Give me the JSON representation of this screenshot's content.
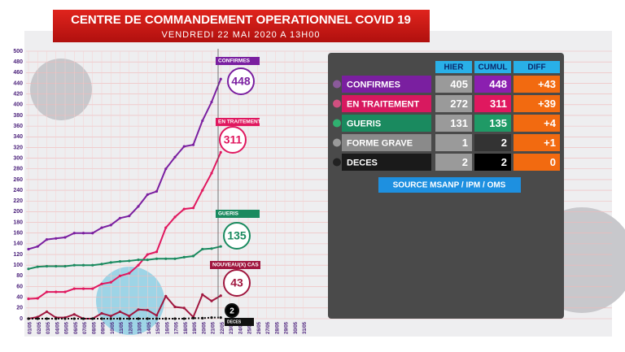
{
  "header": {
    "title": "CENTRE DE COMMANDEMENT OPERATIONNEL COVID 19",
    "subtitle": "VENDREDI 22 MAI 2020 A 13H00"
  },
  "chart_data": {
    "type": "line",
    "categories": [
      "01/05",
      "02/05",
      "03/05",
      "04/05",
      "05/05",
      "06/05",
      "07/05",
      "08/05",
      "09/05",
      "10/05",
      "11/05",
      "12/05",
      "13/05",
      "14/05",
      "15/05",
      "16/05",
      "17/05",
      "18/05",
      "19/05",
      "20/05",
      "21/05",
      "22/05",
      "23/05",
      "24/05",
      "25/05",
      "26/05",
      "27/05",
      "28/05",
      "29/05",
      "30/05",
      "31/05"
    ],
    "series": [
      {
        "name": "CONFIRMES",
        "color": "#7a1fa0",
        "values": [
          130,
          135,
          148,
          150,
          152,
          160,
          160,
          160,
          170,
          175,
          188,
          192,
          210,
          232,
          238,
          280,
          302,
          322,
          325,
          370,
          405,
          448,
          null,
          null,
          null,
          null,
          null,
          null,
          null,
          null,
          null
        ]
      },
      {
        "name": "EN TRAITEMENT",
        "color": "#e0185f",
        "values": [
          37,
          38,
          50,
          50,
          50,
          56,
          56,
          56,
          65,
          68,
          80,
          85,
          100,
          120,
          125,
          170,
          190,
          205,
          207,
          240,
          272,
          311,
          null,
          null,
          null,
          null,
          null,
          null,
          null,
          null,
          null
        ]
      },
      {
        "name": "GUERIS",
        "color": "#1a8a5f",
        "values": [
          93,
          97,
          98,
          98,
          98,
          100,
          100,
          100,
          102,
          105,
          107,
          108,
          110,
          110,
          112,
          112,
          112,
          115,
          117,
          130,
          131,
          135,
          null,
          null,
          null,
          null,
          null,
          null,
          null,
          null,
          null
        ]
      },
      {
        "name": "NOUVEAU(X) CAS",
        "color": "#a0173f",
        "values": [
          0,
          3,
          13,
          2,
          2,
          8,
          0,
          0,
          10,
          5,
          13,
          5,
          17,
          16,
          6,
          42,
          22,
          20,
          3,
          45,
          33,
          43,
          null,
          null,
          null,
          null,
          null,
          null,
          null,
          null,
          null
        ]
      },
      {
        "name": "DECES",
        "color": "#111111",
        "values": [
          0,
          0,
          0,
          0,
          0,
          0,
          0,
          0,
          0,
          0,
          0,
          0,
          0,
          0,
          0,
          0,
          0,
          0,
          1,
          1,
          2,
          2,
          null,
          null,
          null,
          null,
          null,
          null,
          null,
          null,
          null
        ]
      }
    ],
    "ylim": [
      0,
      500
    ],
    "yticks": [
      0,
      20,
      40,
      60,
      80,
      100,
      120,
      140,
      160,
      180,
      200,
      220,
      240,
      260,
      280,
      300,
      320,
      340,
      360,
      380,
      400,
      420,
      440,
      460,
      480,
      500
    ],
    "grid": true
  },
  "table": {
    "columns": [
      "HIER",
      "CUMUL",
      "DIFF"
    ],
    "rows": [
      [
        "CONFIRMES",
        "405",
        "448",
        "+43"
      ],
      [
        "EN TRAITEMENT",
        "272",
        "311",
        "+39"
      ],
      [
        "GUERIS",
        "131",
        "135",
        "+4"
      ],
      [
        "FORME GRAVE",
        "1",
        "2",
        "+1"
      ],
      [
        "DECES",
        "2",
        "2",
        "0"
      ]
    ],
    "source": "SOURCE MSANP / IPM / OMS"
  }
}
